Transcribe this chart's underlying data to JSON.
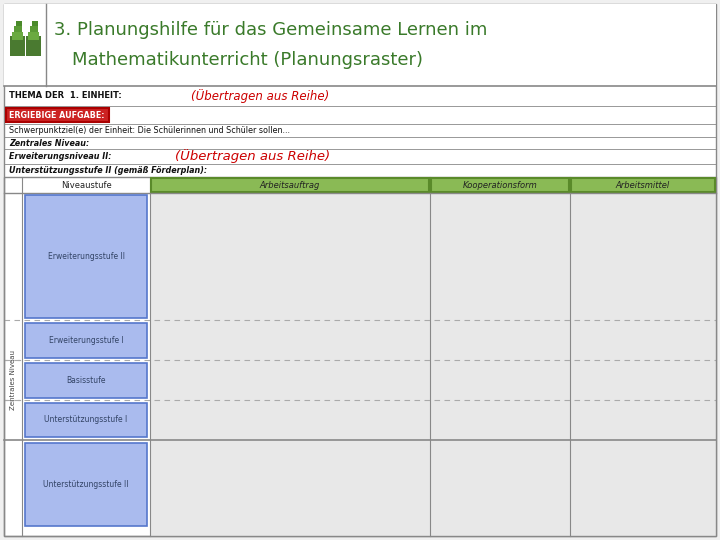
{
  "title_line1": "3. Planungshilfe für das Gemeinsame Lernen im",
  "title_line2": "Mathematikunterricht (Planungsraster)",
  "title_color": "#3a7a2a",
  "title_fontsize": 13,
  "thema_label": "THEMA DER  1. EINHEIT:",
  "ubertragen1": "(Übertragen aus Reihe)",
  "ubertragen2": "(Übertragen aus Reihe)",
  "ubertragen_color": "#cc0000",
  "ergiebige_label": "ERGIEBIGE AUFGABE:",
  "ergiebige_bg": "#cc2222",
  "schwerpunkt_text": "Schwerpunktziel(e) der Einheit: Die Schülerinnen und Schüler sollen...",
  "zentrales_label": "Zentrales Niveau:",
  "erweiterung2_label": "Erweiterungsniveau II:",
  "unterstutzung2_label": "Unterstützungsstufe II (gemäß Förderplan):",
  "col_header_niveaustufe": "Niveaustufe",
  "col_header_arbeitsauftrag": "Arbeitsauftrag",
  "col_header_kooperationsform": "Kooperationsform",
  "col_header_arbeitsmittel": "Arbeitsmittel",
  "green_header_bg": "#8aba55",
  "green_header_border": "#5a8a2a",
  "blue_box_bg": "#aabbee",
  "blue_box_border": "#5577cc",
  "blue_box_text": "#334466",
  "row_labels": [
    "Erweiterungsstufe II",
    "Erweiterungsstufe I",
    "Basisstufe",
    "Unterstützungsstufe I",
    "Unterstützungsstufe II"
  ],
  "zentrales_niveau_label": "Zentrales Niveau",
  "gray_col_bg": "#e8e8e8",
  "border_color": "#888888",
  "dashed_color": "#aaaaaa",
  "page_bg": "#f0f0f0",
  "header_bg": "#ffffff",
  "body_bg": "#ffffff"
}
